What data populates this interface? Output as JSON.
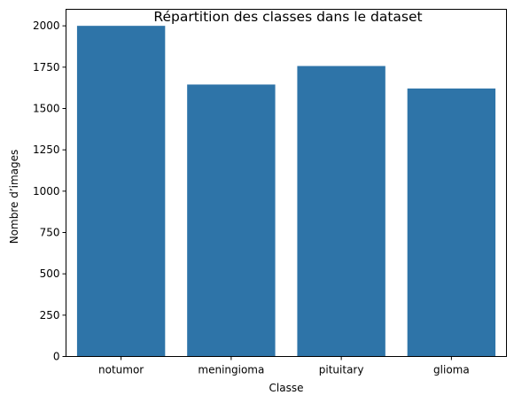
{
  "chart_data": {
    "type": "bar",
    "title": "Répartition des classes dans le dataset",
    "xlabel": "Classe",
    "ylabel": "Nombre d’images",
    "categories": [
      "notumor",
      "meningioma",
      "pituitary",
      "glioma"
    ],
    "values": [
      2000,
      1645,
      1757,
      1621
    ],
    "ylim": [
      0,
      2100
    ],
    "yticks": [
      0,
      250,
      500,
      750,
      1000,
      1250,
      1500,
      1750,
      2000
    ],
    "grid": false,
    "bar_color": "#2e74a8"
  }
}
